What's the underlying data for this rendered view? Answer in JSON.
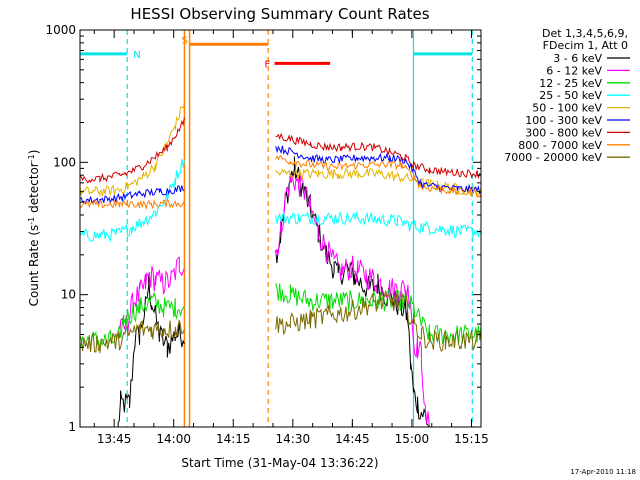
{
  "chart_data": {
    "type": "line",
    "title": "HESSI Observing Summary Count Rates",
    "xlabel": "Start Time (31-May-04 13:36:22)",
    "ylabel_parts": [
      "Count Rate (s",
      "-1",
      " detector",
      "-1",
      ")"
    ],
    "x_unit": "minutes after 13:36:22",
    "xlim": [
      0,
      101
    ],
    "ylim": [
      1,
      1000
    ],
    "yscale": "log",
    "xticks": [
      {
        "value": 8.6,
        "label": "13:45"
      },
      {
        "value": 23.6,
        "label": "14:00"
      },
      {
        "value": 38.6,
        "label": "14:15"
      },
      {
        "value": 53.6,
        "label": "14:30"
      },
      {
        "value": 68.6,
        "label": "14:45"
      },
      {
        "value": 83.6,
        "label": "15:00"
      },
      {
        "value": 98.6,
        "label": "15:15"
      }
    ],
    "yticks": [
      {
        "value": 1,
        "label": "1"
      },
      {
        "value": 10,
        "label": "10"
      },
      {
        "value": 100,
        "label": "100"
      },
      {
        "value": 1000,
        "label": "1000"
      }
    ],
    "legend_header": [
      "Det 1,3,4,5,6,9,",
      "FDecim 1, Att 0"
    ],
    "legend_placement": "right",
    "footer_stamp": "17-Apr-2010 11:18",
    "night_markers": [
      {
        "flag": "N",
        "color": "#00e5e5",
        "start": 0,
        "end": 11.9,
        "level": 660
      },
      {
        "flag": "",
        "color": "#00e5e5",
        "start": 84.0,
        "end": 98.8,
        "level": 660
      }
    ],
    "night_lines": [
      {
        "x": 11.9,
        "style": "dashed",
        "color": "#00e5e5"
      },
      {
        "x": 84.0,
        "style": "solid",
        "color": "#00e5e5"
      },
      {
        "x": 98.8,
        "style": "dashed",
        "color": "#00e5e5"
      }
    ],
    "saa_marker": {
      "flag": "S",
      "color": "#ff8000",
      "start": 27.6,
      "end": 47.4,
      "level": 780,
      "start_line": 27.6,
      "end_line": 47.4
    },
    "flare_marker": {
      "flag": "F",
      "color": "#ff0000",
      "start": 49.0,
      "end": 63.0,
      "level": 560
    },
    "gap_line": {
      "x": 26.3,
      "color": "#ff8000"
    },
    "series": [
      {
        "name": "3 - 6 keV",
        "color": "#000000",
        "points": [
          [
            0,
            1.0
          ],
          [
            9.6,
            1.0
          ],
          [
            10.2,
            1.5
          ],
          [
            12.5,
            1.5
          ],
          [
            13.8,
            4.5
          ],
          [
            15,
            5
          ],
          [
            16.5,
            8
          ],
          [
            17.3,
            12
          ],
          [
            18,
            9
          ],
          [
            20,
            5
          ],
          [
            22,
            4
          ],
          [
            24,
            5
          ],
          [
            26.3,
            5
          ],
          [
            27.6,
            null
          ],
          [
            49,
            null
          ],
          [
            49.3,
            20
          ],
          [
            50.5,
            28
          ],
          [
            52,
            55
          ],
          [
            53,
            75
          ],
          [
            54,
            90
          ],
          [
            56,
            65
          ],
          [
            58,
            45
          ],
          [
            60,
            30
          ],
          [
            62,
            20
          ],
          [
            64,
            16
          ],
          [
            65,
            14
          ],
          [
            67,
            16
          ],
          [
            69,
            14
          ],
          [
            71,
            12
          ],
          [
            73,
            11
          ],
          [
            75,
            12
          ],
          [
            77,
            10
          ],
          [
            79,
            9
          ],
          [
            81,
            8
          ],
          [
            82.5,
            7
          ],
          [
            83.3,
            3
          ],
          [
            84,
            1.8
          ],
          [
            85,
            1.5
          ],
          [
            86,
            1.3
          ],
          [
            87,
            1.2
          ],
          [
            88,
            1.0
          ],
          [
            101,
            1.0
          ]
        ]
      },
      {
        "name": "6 - 12 keV",
        "color": "#ff00ff",
        "points": [
          [
            9.6,
            5.0
          ],
          [
            12,
            6
          ],
          [
            13.5,
            9
          ],
          [
            15,
            10
          ],
          [
            16.5,
            12
          ],
          [
            17.5,
            14
          ],
          [
            19,
            13
          ],
          [
            21,
            12
          ],
          [
            23,
            13
          ],
          [
            25,
            17
          ],
          [
            26.3,
            17
          ],
          [
            27.6,
            null
          ],
          [
            49,
            null
          ],
          [
            49.3,
            20
          ],
          [
            50.5,
            30
          ],
          [
            52,
            60
          ],
          [
            53.5,
            75
          ],
          [
            55,
            70
          ],
          [
            56.5,
            60
          ],
          [
            58,
            45
          ],
          [
            60,
            30
          ],
          [
            62,
            22
          ],
          [
            64,
            17
          ],
          [
            66,
            15
          ],
          [
            68,
            16
          ],
          [
            70,
            15
          ],
          [
            72,
            14
          ],
          [
            74,
            13
          ],
          [
            76,
            12
          ],
          [
            78,
            11
          ],
          [
            80,
            11
          ],
          [
            82,
            11
          ],
          [
            83.2,
            10
          ],
          [
            84,
            4.5
          ],
          [
            85,
            4
          ],
          [
            86,
            3.5
          ],
          [
            87,
            1.2
          ],
          [
            88,
            1.0
          ],
          [
            101,
            1.0
          ]
        ]
      },
      {
        "name": "12 - 25 keV",
        "color": "#00dd00",
        "points": [
          [
            0,
            4.5
          ],
          [
            9.6,
            4.5
          ],
          [
            11,
            6.5
          ],
          [
            15,
            8
          ],
          [
            18,
            9
          ],
          [
            21,
            8
          ],
          [
            24,
            8
          ],
          [
            26.3,
            8
          ],
          [
            27.6,
            null
          ],
          [
            49,
            null
          ],
          [
            49.3,
            11
          ],
          [
            53,
            10
          ],
          [
            58,
            9
          ],
          [
            63,
            9
          ],
          [
            68,
            9
          ],
          [
            73,
            9
          ],
          [
            78,
            9
          ],
          [
            82,
            9
          ],
          [
            84,
            8
          ],
          [
            86,
            6
          ],
          [
            88,
            5
          ],
          [
            101,
            5
          ]
        ]
      },
      {
        "name": "25 - 50 keV",
        "color": "#00ffff",
        "points": [
          [
            0,
            28
          ],
          [
            5,
            28
          ],
          [
            10,
            29
          ],
          [
            13,
            32
          ],
          [
            16,
            36
          ],
          [
            19,
            42
          ],
          [
            22,
            55
          ],
          [
            24,
            75
          ],
          [
            26.3,
            108
          ],
          [
            27.6,
            null
          ],
          [
            49,
            null
          ],
          [
            49.3,
            38
          ],
          [
            55,
            38
          ],
          [
            60,
            38
          ],
          [
            65,
            38
          ],
          [
            70,
            38
          ],
          [
            75,
            37
          ],
          [
            80,
            36
          ],
          [
            84,
            33
          ],
          [
            88,
            32
          ],
          [
            92,
            31
          ],
          [
            96,
            30
          ],
          [
            101,
            30
          ]
        ]
      },
      {
        "name": "50 - 100 keV",
        "color": "#e5b400",
        "points": [
          [
            0,
            60
          ],
          [
            5,
            60
          ],
          [
            10,
            62
          ],
          [
            13,
            68
          ],
          [
            16,
            78
          ],
          [
            19,
            95
          ],
          [
            22,
            140
          ],
          [
            24,
            190
          ],
          [
            26.3,
            290
          ],
          [
            27.6,
            null
          ],
          [
            49,
            null
          ],
          [
            49.3,
            83
          ],
          [
            55,
            82
          ],
          [
            60,
            82
          ],
          [
            65,
            82
          ],
          [
            70,
            82
          ],
          [
            75,
            82
          ],
          [
            80,
            78
          ],
          [
            84,
            74
          ],
          [
            86,
            70
          ],
          [
            90,
            67
          ],
          [
            95,
            63
          ],
          [
            101,
            60
          ]
        ]
      },
      {
        "name": "100 - 300 keV",
        "color": "#0000ff",
        "points": [
          [
            0,
            52
          ],
          [
            5,
            52
          ],
          [
            10,
            54
          ],
          [
            15,
            58
          ],
          [
            20,
            60
          ],
          [
            24,
            62
          ],
          [
            26.3,
            65
          ],
          [
            27.6,
            null
          ],
          [
            49,
            null
          ],
          [
            49.3,
            130
          ],
          [
            54,
            118
          ],
          [
            58,
            108
          ],
          [
            62,
            104
          ],
          [
            66,
            105
          ],
          [
            70,
            108
          ],
          [
            74,
            108
          ],
          [
            78,
            108
          ],
          [
            82,
            104
          ],
          [
            84,
            86
          ],
          [
            86,
            68
          ],
          [
            90,
            65
          ],
          [
            95,
            63
          ],
          [
            101,
            62
          ]
        ]
      },
      {
        "name": "300 - 800 keV",
        "color": "#d00000",
        "points": [
          [
            0,
            75
          ],
          [
            5,
            75
          ],
          [
            10,
            80
          ],
          [
            13,
            85
          ],
          [
            16,
            95
          ],
          [
            19,
            110
          ],
          [
            22,
            130
          ],
          [
            24,
            160
          ],
          [
            26.3,
            205
          ],
          [
            27.6,
            null
          ],
          [
            49,
            null
          ],
          [
            49.3,
            160
          ],
          [
            53,
            150
          ],
          [
            58,
            138
          ],
          [
            62,
            130
          ],
          [
            66,
            130
          ],
          [
            70,
            132
          ],
          [
            74,
            130
          ],
          [
            78,
            120
          ],
          [
            82,
            108
          ],
          [
            84,
            95
          ],
          [
            88,
            88
          ],
          [
            92,
            85
          ],
          [
            96,
            83
          ],
          [
            101,
            82
          ]
        ]
      },
      {
        "name": "800 - 7000 keV",
        "color": "#ff8000",
        "points": [
          [
            0,
            48
          ],
          [
            5,
            48
          ],
          [
            10,
            48
          ],
          [
            12,
            49
          ],
          [
            15,
            48
          ],
          [
            18,
            48
          ],
          [
            21,
            49
          ],
          [
            24,
            49
          ],
          [
            26.3,
            49
          ],
          [
            27.6,
            null
          ],
          [
            49,
            null
          ],
          [
            49.3,
            110
          ],
          [
            53,
            102
          ],
          [
            57,
            97
          ],
          [
            61,
            94
          ],
          [
            65,
            92
          ],
          [
            69,
            95
          ],
          [
            73,
            96
          ],
          [
            77,
            96
          ],
          [
            81,
            95
          ],
          [
            84,
            78
          ],
          [
            86,
            65
          ],
          [
            90,
            63
          ],
          [
            95,
            60
          ],
          [
            101,
            58
          ]
        ]
      },
      {
        "name": "7000 - 20000 keV",
        "color": "#7a6a00",
        "points": [
          [
            0,
            4.3
          ],
          [
            5,
            4.3
          ],
          [
            9.6,
            4.5
          ],
          [
            12,
            5
          ],
          [
            15,
            5.5
          ],
          [
            18,
            5.5
          ],
          [
            21,
            5.5
          ],
          [
            24,
            5.5
          ],
          [
            26.3,
            6
          ],
          [
            27.6,
            null
          ],
          [
            49,
            null
          ],
          [
            49.3,
            6
          ],
          [
            53,
            6
          ],
          [
            58,
            6.5
          ],
          [
            63,
            7
          ],
          [
            68,
            7.5
          ],
          [
            73,
            8.5
          ],
          [
            78,
            9
          ],
          [
            82,
            8.5
          ],
          [
            84,
            6
          ],
          [
            86,
            5
          ],
          [
            88,
            4.5
          ],
          [
            92,
            4.5
          ],
          [
            96,
            4.5
          ],
          [
            101,
            4.5
          ]
        ]
      }
    ]
  }
}
